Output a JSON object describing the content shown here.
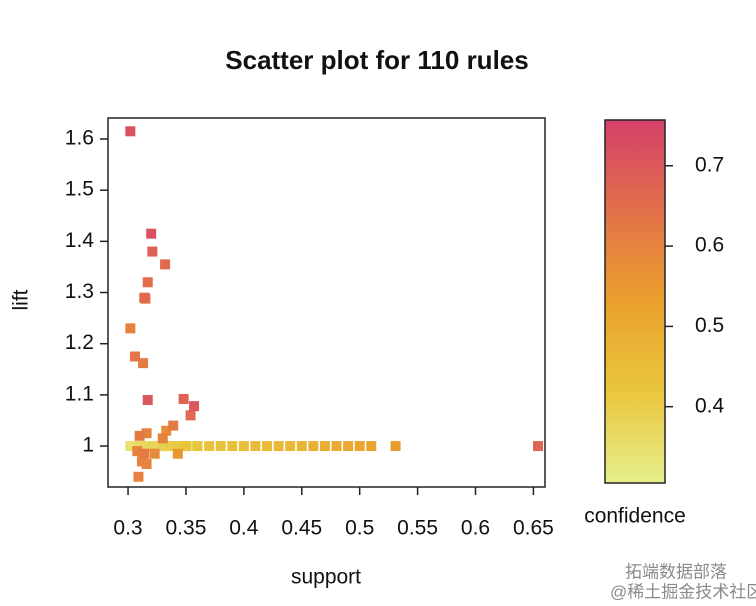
{
  "chart_data": {
    "type": "scatter",
    "title": "Scatter plot for 110 rules",
    "x_label": "support",
    "y_label": "lift",
    "color_label": "confidence",
    "x": [
      0.302,
      0.32,
      0.321,
      0.332,
      0.317,
      0.314,
      0.315,
      0.302,
      0.306,
      0.313,
      0.317,
      0.348,
      0.357,
      0.354,
      0.339,
      0.333,
      0.33,
      0.31,
      0.316,
      0.308,
      0.314,
      0.323,
      0.312,
      0.316,
      0.343,
      0.309,
      0.654,
      0.531,
      0.302,
      0.306,
      0.31,
      0.314,
      0.318,
      0.322,
      0.326,
      0.33,
      0.334,
      0.338,
      0.342,
      0.346,
      0.35,
      0.355,
      0.36,
      0.37,
      0.38,
      0.39,
      0.4,
      0.41,
      0.42,
      0.43,
      0.44,
      0.45,
      0.46,
      0.47,
      0.48,
      0.49,
      0.5,
      0.51
    ],
    "values": [
      1.615,
      1.415,
      1.38,
      1.355,
      1.32,
      1.29,
      1.288,
      1.23,
      1.175,
      1.162,
      1.09,
      1.092,
      1.078,
      1.06,
      1.04,
      1.03,
      1.015,
      1.02,
      1.025,
      0.99,
      0.985,
      0.985,
      0.97,
      0.965,
      0.985,
      0.94,
      1.0,
      1.0,
      1.0,
      1.0,
      1.0,
      1.0,
      1.0,
      1.0,
      1.0,
      1.0,
      1.0,
      1.0,
      1.0,
      1.0,
      1.0,
      1.0,
      1.0,
      1.0,
      1.0,
      1.0,
      1.0,
      1.0,
      1.0,
      1.0,
      1.0,
      1.0,
      1.0,
      1.0,
      1.0,
      1.0,
      1.0,
      1.0
    ],
    "confidence": [
      0.72,
      0.72,
      0.68,
      0.66,
      0.65,
      0.66,
      0.64,
      0.6,
      0.63,
      0.62,
      0.7,
      0.68,
      0.7,
      0.66,
      0.62,
      0.58,
      0.6,
      0.62,
      0.6,
      0.6,
      0.62,
      0.58,
      0.6,
      0.6,
      0.55,
      0.6,
      0.67,
      0.54,
      0.34,
      0.35,
      0.36,
      0.37,
      0.37,
      0.38,
      0.38,
      0.39,
      0.36,
      0.4,
      0.41,
      0.4,
      0.42,
      0.33,
      0.42,
      0.43,
      0.43,
      0.44,
      0.44,
      0.45,
      0.45,
      0.46,
      0.46,
      0.47,
      0.48,
      0.49,
      0.5,
      0.5,
      0.51,
      0.52
    ],
    "xlim": [
      0.2827,
      0.66
    ],
    "xticks": [
      0.3,
      0.35,
      0.4,
      0.45,
      0.5,
      0.55,
      0.6,
      0.65
    ],
    "ylim": [
      0.92,
      1.641
    ],
    "yticks": [
      1,
      1.1,
      1.2,
      1.3,
      1.4,
      1.5,
      1.6
    ],
    "clim": [
      0.305,
      0.757
    ],
    "cticks": [
      0.4,
      0.5,
      0.6,
      0.7
    ],
    "colorscale": [
      "#e7ef8c",
      "#e9c63e",
      "#e9a02c",
      "#e2704a",
      "#d4406a"
    ]
  },
  "watermark": [
    "拓端数据部落",
    "@稀土掘金技术社区"
  ]
}
